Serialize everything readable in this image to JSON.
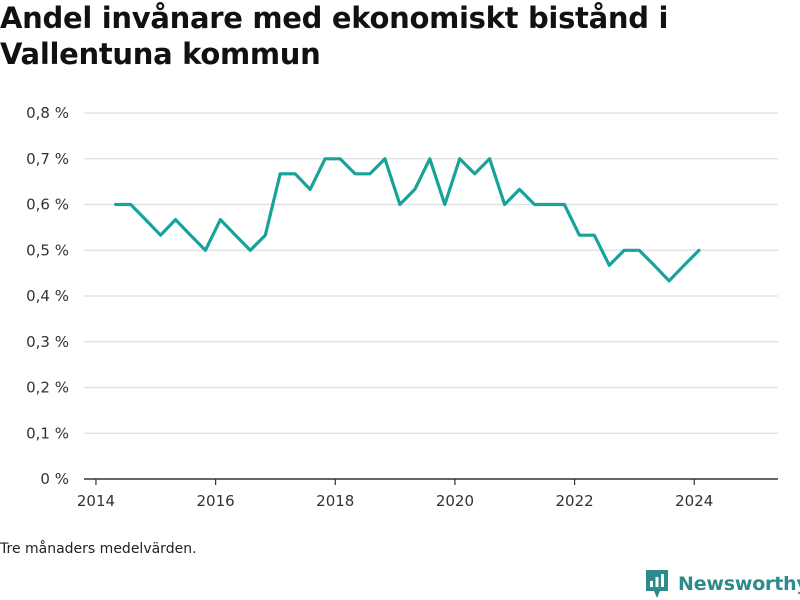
{
  "title": "Andel invånare med ekonomiskt bistånd i Vallentuna kommun",
  "footnote": "Tre månaders medelvärden.",
  "brand": {
    "name": "Newsworthy",
    "icon": "newsworthy-logo-icon"
  },
  "colors": {
    "line": "#17a398",
    "grid": "#dddddd",
    "axis": "#333333",
    "brand": "#2e8b8b"
  },
  "chart_data": {
    "type": "line",
    "title": "Andel invånare med ekonomiskt bistånd i Vallentuna kommun",
    "xlabel": "",
    "ylabel": "",
    "xlim": [
      2013.8,
      2025.4
    ],
    "ylim": [
      0,
      0.8
    ],
    "x_ticks": [
      2014,
      2016,
      2018,
      2020,
      2022,
      2024
    ],
    "x_tick_labels": [
      "2014",
      "2016",
      "2018",
      "2020",
      "2022",
      "2024"
    ],
    "y_ticks": [
      0,
      0.1,
      0.2,
      0.3,
      0.4,
      0.5,
      0.6,
      0.7,
      0.8
    ],
    "y_tick_labels": [
      "0 %",
      "0,1 %",
      "0,2 %",
      "0,3 %",
      "0,4 %",
      "0,5 %",
      "0,6 %",
      "0,7 %",
      "0,8 %"
    ],
    "grid": true,
    "legend": "none",
    "series": [
      {
        "x": [
          2014.33,
          2014.58,
          2014.83,
          2015.08,
          2015.33,
          2015.58,
          2015.83,
          2016.08,
          2016.33,
          2016.58,
          2016.83,
          2017.08,
          2017.33,
          2017.58,
          2017.83,
          2018.08,
          2018.33,
          2018.58,
          2018.83,
          2019.08,
          2019.33,
          2019.58,
          2019.83,
          2020.08,
          2020.33,
          2020.58,
          2020.83,
          2021.08,
          2021.33,
          2021.58,
          2021.83,
          2022.08,
          2022.33,
          2022.58,
          2022.83,
          2023.08,
          2023.33,
          2023.58,
          2023.83,
          2024.08
        ],
        "values": [
          0.6,
          0.6,
          0.567,
          0.533,
          0.567,
          0.533,
          0.5,
          0.567,
          0.533,
          0.5,
          0.533,
          0.667,
          0.667,
          0.633,
          0.7,
          0.7,
          0.667,
          0.667,
          0.7,
          0.6,
          0.633,
          0.7,
          0.6,
          0.7,
          0.667,
          0.7,
          0.6,
          0.633,
          0.6,
          0.6,
          0.6,
          0.533,
          0.533,
          0.467,
          0.5,
          0.5,
          0.467,
          0.433,
          0.467,
          0.5
        ]
      }
    ]
  }
}
